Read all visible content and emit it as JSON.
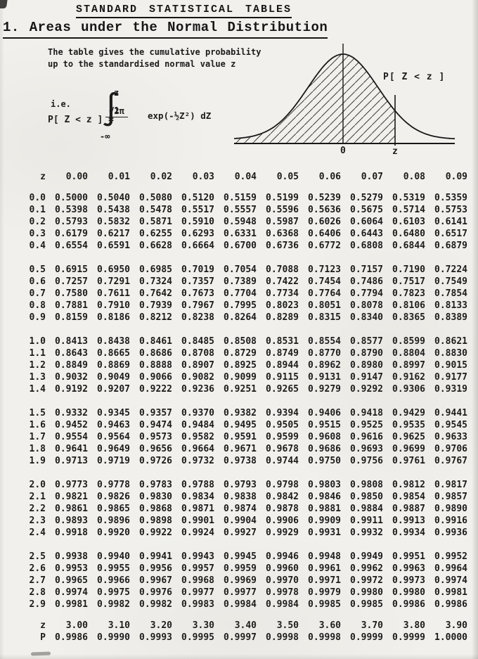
{
  "document": {
    "title": "STANDARD STATISTICAL TABLES",
    "section_heading": "1. Areas under the Normal Distribution"
  },
  "intro": {
    "line1": "The table gives the cumulative probability",
    "line2": "up to the standardised normal value z",
    "ie_label": "i.e.",
    "formula": {
      "lhs": "P[ Z < z ] =",
      "integral_sign": "∫",
      "upper_limit": "z",
      "lower_limit": "-∞",
      "numerator": "1",
      "denominator": "√2π",
      "rhs": "exp(-½Z²) dZ"
    }
  },
  "diagram": {
    "area_label": "P[ Z < z ]",
    "origin_label": "0",
    "z_label": "z"
  },
  "table": {
    "corner_label": "z",
    "col_headers": [
      "0.00",
      "0.01",
      "0.02",
      "0.03",
      "0.04",
      "0.05",
      "0.06",
      "0.07",
      "0.08",
      "0.09"
    ],
    "blocks": [
      {
        "rows": [
          {
            "z": "0.0",
            "values": [
              "0.5000",
              "0.5040",
              "0.5080",
              "0.5120",
              "0.5159",
              "0.5199",
              "0.5239",
              "0.5279",
              "0.5319",
              "0.5359"
            ]
          },
          {
            "z": "0.1",
            "values": [
              "0.5398",
              "0.5438",
              "0.5478",
              "0.5517",
              "0.5557",
              "0.5596",
              "0.5636",
              "0.5675",
              "0.5714",
              "0.5753"
            ]
          },
          {
            "z": "0.2",
            "values": [
              "0.5793",
              "0.5832",
              "0.5871",
              "0.5910",
              "0.5948",
              "0.5987",
              "0.6026",
              "0.6064",
              "0.6103",
              "0.6141"
            ]
          },
          {
            "z": "0.3",
            "values": [
              "0.6179",
              "0.6217",
              "0.6255",
              "0.6293",
              "0.6331",
              "0.6368",
              "0.6406",
              "0.6443",
              "0.6480",
              "0.6517"
            ]
          },
          {
            "z": "0.4",
            "values": [
              "0.6554",
              "0.6591",
              "0.6628",
              "0.6664",
              "0.6700",
              "0.6736",
              "0.6772",
              "0.6808",
              "0.6844",
              "0.6879"
            ]
          }
        ]
      },
      {
        "rows": [
          {
            "z": "0.5",
            "values": [
              "0.6915",
              "0.6950",
              "0.6985",
              "0.7019",
              "0.7054",
              "0.7088",
              "0.7123",
              "0.7157",
              "0.7190",
              "0.7224"
            ]
          },
          {
            "z": "0.6",
            "values": [
              "0.7257",
              "0.7291",
              "0.7324",
              "0.7357",
              "0.7389",
              "0.7422",
              "0.7454",
              "0.7486",
              "0.7517",
              "0.7549"
            ]
          },
          {
            "z": "0.7",
            "values": [
              "0.7580",
              "0.7611",
              "0.7642",
              "0.7673",
              "0.7704",
              "0.7734",
              "0.7764",
              "0.7794",
              "0.7823",
              "0.7854"
            ]
          },
          {
            "z": "0.8",
            "values": [
              "0.7881",
              "0.7910",
              "0.7939",
              "0.7967",
              "0.7995",
              "0.8023",
              "0.8051",
              "0.8078",
              "0.8106",
              "0.8133"
            ]
          },
          {
            "z": "0.9",
            "values": [
              "0.8159",
              "0.8186",
              "0.8212",
              "0.8238",
              "0.8264",
              "0.8289",
              "0.8315",
              "0.8340",
              "0.8365",
              "0.8389"
            ]
          }
        ]
      },
      {
        "rows": [
          {
            "z": "1.0",
            "values": [
              "0.8413",
              "0.8438",
              "0.8461",
              "0.8485",
              "0.8508",
              "0.8531",
              "0.8554",
              "0.8577",
              "0.8599",
              "0.8621"
            ]
          },
          {
            "z": "1.1",
            "values": [
              "0.8643",
              "0.8665",
              "0.8686",
              "0.8708",
              "0.8729",
              "0.8749",
              "0.8770",
              "0.8790",
              "0.8804",
              "0.8830"
            ]
          },
          {
            "z": "1.2",
            "values": [
              "0.8849",
              "0.8869",
              "0.8888",
              "0.8907",
              "0.8925",
              "0.8944",
              "0.8962",
              "0.8980",
              "0.8997",
              "0.9015"
            ]
          },
          {
            "z": "1.3",
            "values": [
              "0.9032",
              "0.9049",
              "0.9066",
              "0.9082",
              "0.9099",
              "0.9115",
              "0.9131",
              "0.9147",
              "0.9162",
              "0.9177"
            ]
          },
          {
            "z": "1.4",
            "values": [
              "0.9192",
              "0.9207",
              "0.9222",
              "0.9236",
              "0.9251",
              "0.9265",
              "0.9279",
              "0.9292",
              "0.9306",
              "0.9319"
            ]
          }
        ]
      },
      {
        "rows": [
          {
            "z": "1.5",
            "values": [
              "0.9332",
              "0.9345",
              "0.9357",
              "0.9370",
              "0.9382",
              "0.9394",
              "0.9406",
              "0.9418",
              "0.9429",
              "0.9441"
            ]
          },
          {
            "z": "1.6",
            "values": [
              "0.9452",
              "0.9463",
              "0.9474",
              "0.9484",
              "0.9495",
              "0.9505",
              "0.9515",
              "0.9525",
              "0.9535",
              "0.9545"
            ]
          },
          {
            "z": "1.7",
            "values": [
              "0.9554",
              "0.9564",
              "0.9573",
              "0.9582",
              "0.9591",
              "0.9599",
              "0.9608",
              "0.9616",
              "0.9625",
              "0.9633"
            ]
          },
          {
            "z": "1.8",
            "values": [
              "0.9641",
              "0.9649",
              "0.9656",
              "0.9664",
              "0.9671",
              "0.9678",
              "0.9686",
              "0.9693",
              "0.9699",
              "0.9706"
            ]
          },
          {
            "z": "1.9",
            "values": [
              "0.9713",
              "0.9719",
              "0.9726",
              "0.9732",
              "0.9738",
              "0.9744",
              "0.9750",
              "0.9756",
              "0.9761",
              "0.9767"
            ]
          }
        ]
      },
      {
        "rows": [
          {
            "z": "2.0",
            "values": [
              "0.9773",
              "0.9778",
              "0.9783",
              "0.9788",
              "0.9793",
              "0.9798",
              "0.9803",
              "0.9808",
              "0.9812",
              "0.9817"
            ]
          },
          {
            "z": "2.1",
            "values": [
              "0.9821",
              "0.9826",
              "0.9830",
              "0.9834",
              "0.9838",
              "0.9842",
              "0.9846",
              "0.9850",
              "0.9854",
              "0.9857"
            ]
          },
          {
            "z": "2.2",
            "values": [
              "0.9861",
              "0.9865",
              "0.9868",
              "0.9871",
              "0.9874",
              "0.9878",
              "0.9881",
              "0.9884",
              "0.9887",
              "0.9890"
            ]
          },
          {
            "z": "2.3",
            "values": [
              "0.9893",
              "0.9896",
              "0.9898",
              "0.9901",
              "0.9904",
              "0.9906",
              "0.9909",
              "0.9911",
              "0.9913",
              "0.9916"
            ]
          },
          {
            "z": "2.4",
            "values": [
              "0.9918",
              "0.9920",
              "0.9922",
              "0.9924",
              "0.9927",
              "0.9929",
              "0.9931",
              "0.9932",
              "0.9934",
              "0.9936"
            ]
          }
        ]
      },
      {
        "rows": [
          {
            "z": "2.5",
            "values": [
              "0.9938",
              "0.9940",
              "0.9941",
              "0.9943",
              "0.9945",
              "0.9946",
              "0.9948",
              "0.9949",
              "0.9951",
              "0.9952"
            ]
          },
          {
            "z": "2.6",
            "values": [
              "0.9953",
              "0.9955",
              "0.9956",
              "0.9957",
              "0.9959",
              "0.9960",
              "0.9961",
              "0.9962",
              "0.9963",
              "0.9964"
            ]
          },
          {
            "z": "2.7",
            "values": [
              "0.9965",
              "0.9966",
              "0.9967",
              "0.9968",
              "0.9969",
              "0.9970",
              "0.9971",
              "0.9972",
              "0.9973",
              "0.9974"
            ]
          },
          {
            "z": "2.8",
            "values": [
              "0.9974",
              "0.9975",
              "0.9976",
              "0.9977",
              "0.9977",
              "0.9978",
              "0.9979",
              "0.9980",
              "0.9980",
              "0.9981"
            ]
          },
          {
            "z": "2.9",
            "values": [
              "0.9981",
              "0.9982",
              "0.9982",
              "0.9983",
              "0.9984",
              "0.9984",
              "0.9985",
              "0.9985",
              "0.9986",
              "0.9986"
            ]
          }
        ]
      }
    ],
    "footer": {
      "z_label": "z",
      "z_values": [
        "3.00",
        "3.10",
        "3.20",
        "3.30",
        "3.40",
        "3.50",
        "3.60",
        "3.70",
        "3.80",
        "3.90"
      ],
      "p_label": "P",
      "p_values": [
        "0.9986",
        "0.9990",
        "0.9993",
        "0.9995",
        "0.9997",
        "0.9998",
        "0.9998",
        "0.9999",
        "0.9999",
        "1.0000"
      ]
    }
  }
}
